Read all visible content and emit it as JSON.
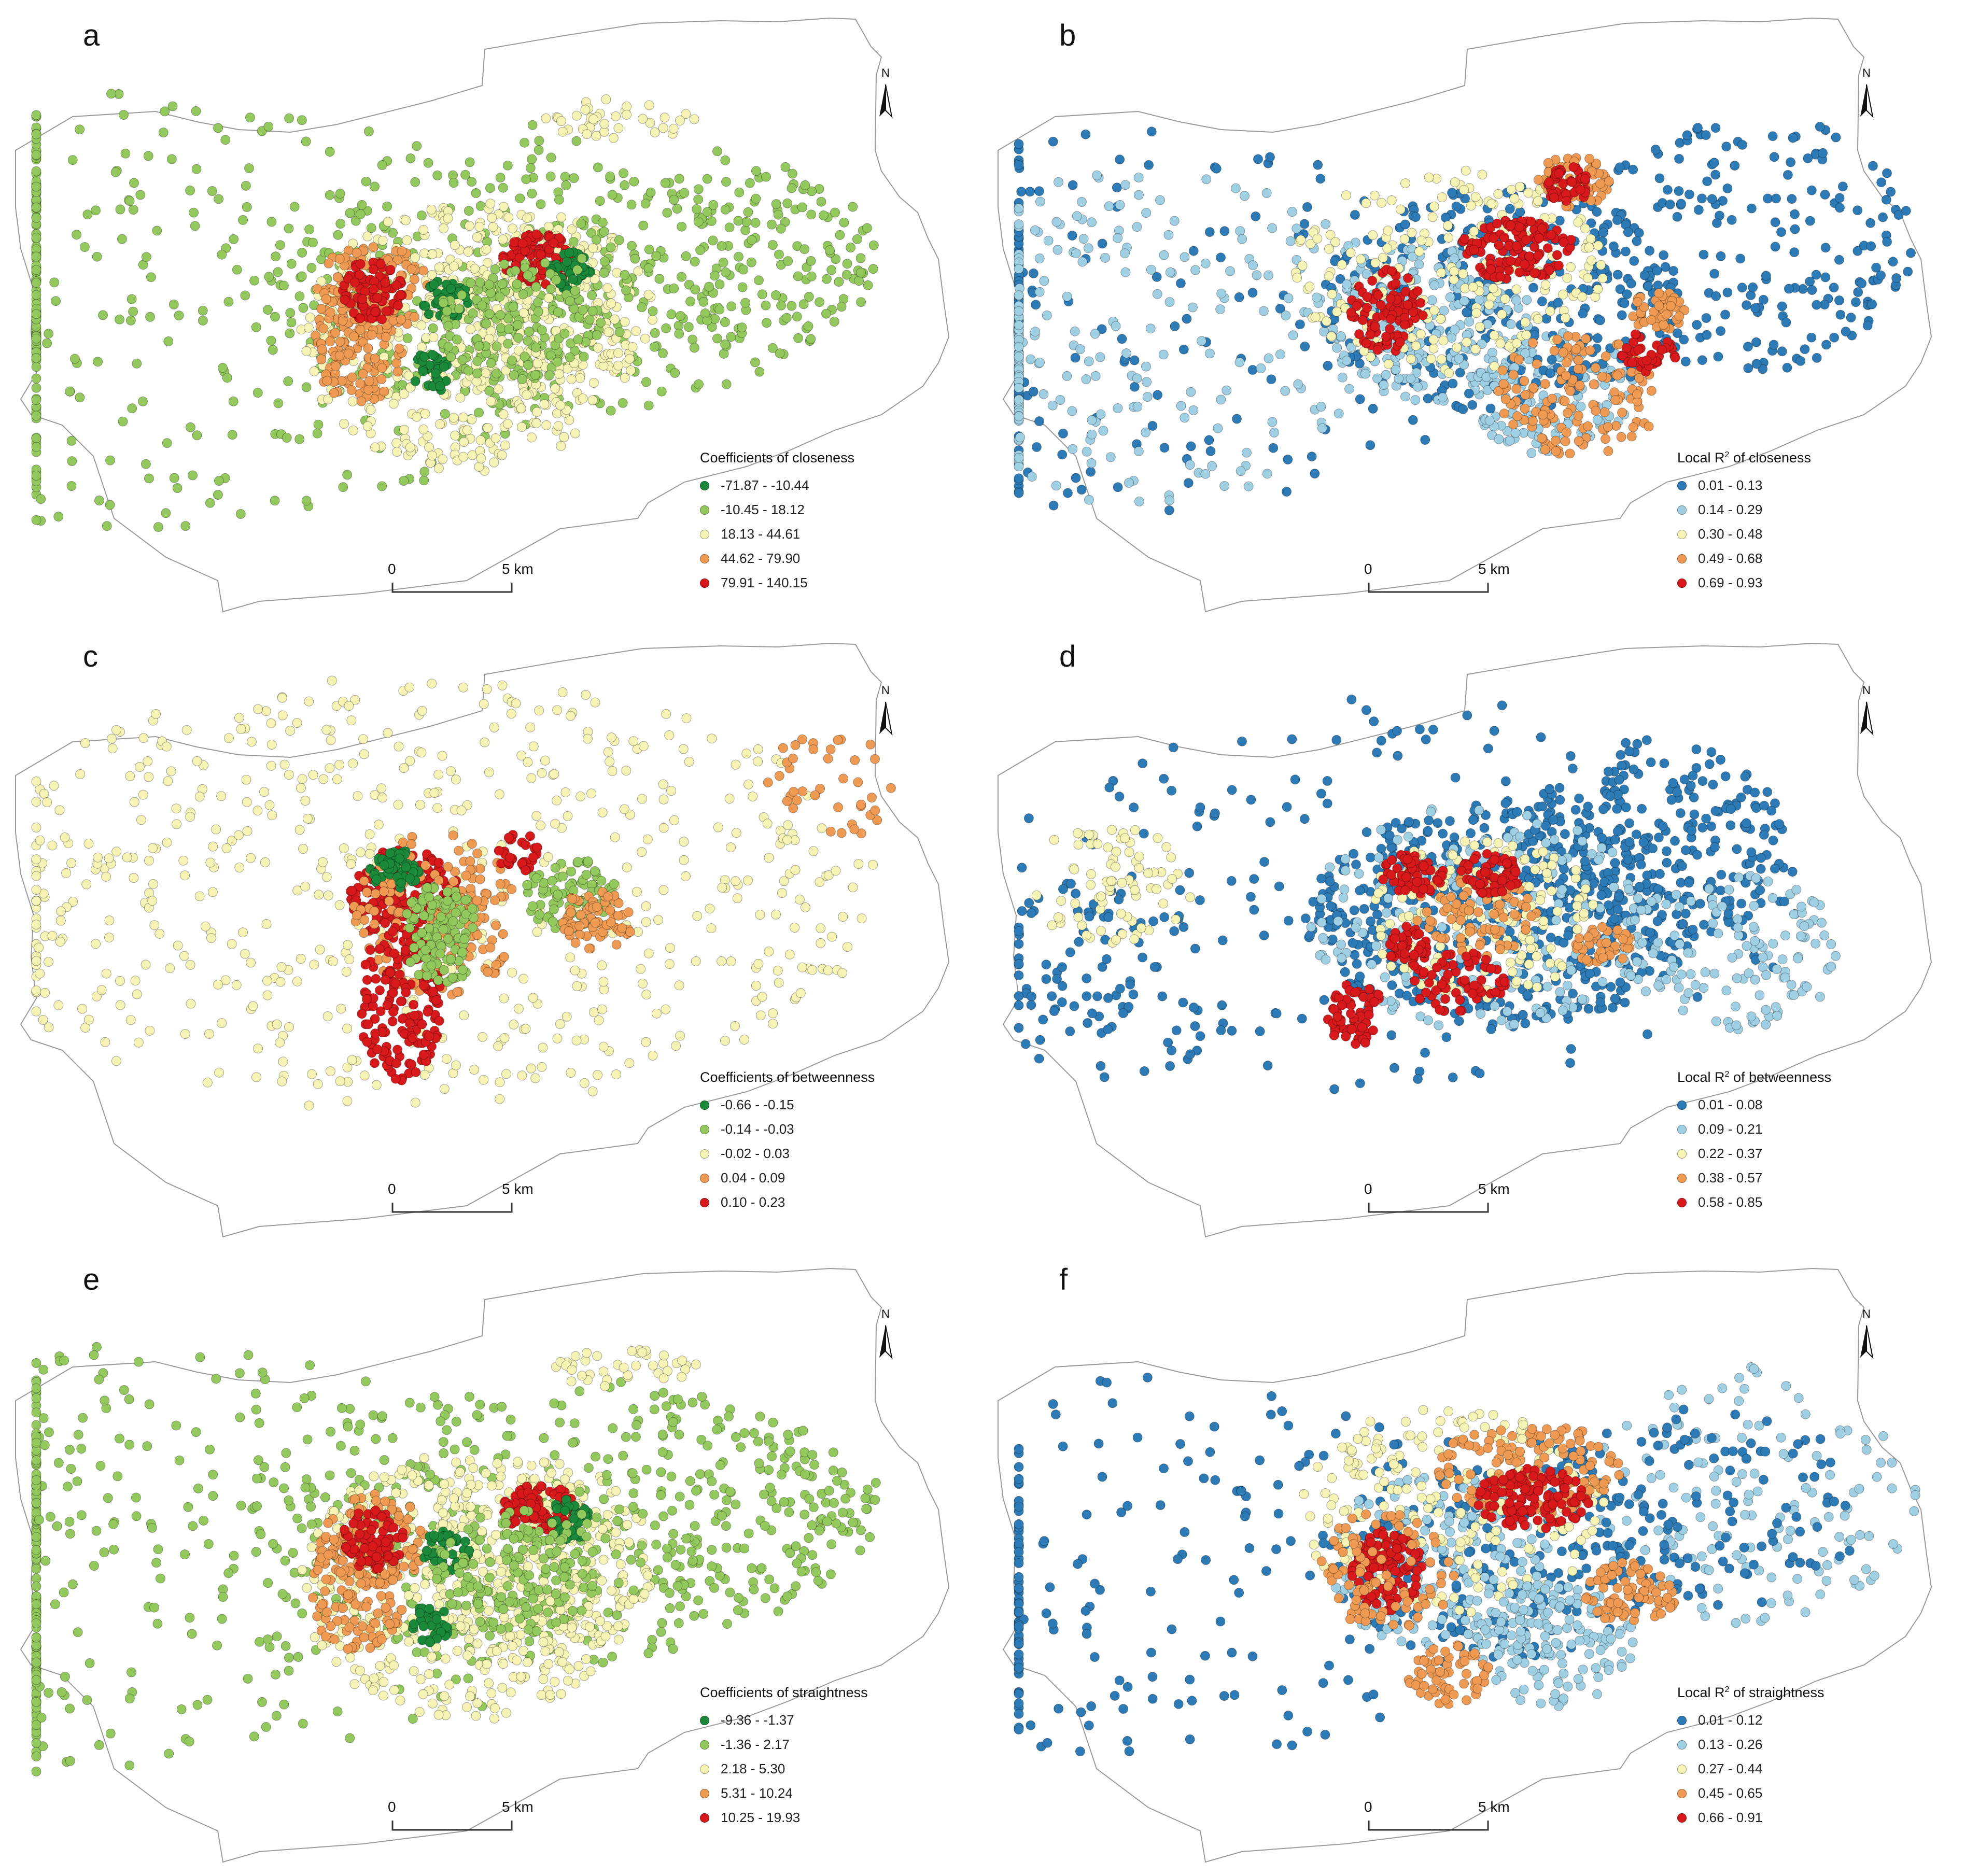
{
  "figure": {
    "north_label": "N",
    "scale_zero": "0",
    "scale_distance": "5 km",
    "panels": [
      {
        "letter": "a",
        "legend_title": "Coefficients of closeness",
        "classes": [
          {
            "label": "-71.87 - -10.44",
            "color": "#1a8a3a"
          },
          {
            "label": "-10.45 - 18.12",
            "color": "#93c95c"
          },
          {
            "label": "18.13 - 44.61",
            "color": "#f6f4b4"
          },
          {
            "label": "44.62 - 79.90",
            "color": "#ef9a52"
          },
          {
            "label": "79.91 - 140.15",
            "color": "#d7191c"
          }
        ]
      },
      {
        "letter": "b",
        "legend_title_pre": "Local R",
        "legend_title_sup": "2",
        "legend_title_post": " of closeness",
        "classes": [
          {
            "label": "0.01 - 0.13",
            "color": "#2c7bb6"
          },
          {
            "label": "0.14 - 0.29",
            "color": "#9fcfe3"
          },
          {
            "label": "0.30 - 0.48",
            "color": "#f6f4b4"
          },
          {
            "label": "0.49 - 0.68",
            "color": "#ef9a52"
          },
          {
            "label": "0.69 - 0.93",
            "color": "#d7191c"
          }
        ]
      },
      {
        "letter": "c",
        "legend_title": "Coefficients of betweenness",
        "classes": [
          {
            "label": "-0.66 - -0.15",
            "color": "#1a8a3a"
          },
          {
            "label": "-0.14 - -0.03",
            "color": "#93c95c"
          },
          {
            "label": "-0.02 - 0.03",
            "color": "#f6f4b4"
          },
          {
            "label": "0.04 - 0.09",
            "color": "#ef9a52"
          },
          {
            "label": "0.10 - 0.23",
            "color": "#d7191c"
          }
        ]
      },
      {
        "letter": "d",
        "legend_title_pre": "Local R",
        "legend_title_sup": "2",
        "legend_title_post": " of betweenness",
        "classes": [
          {
            "label": "0.01 - 0.08",
            "color": "#2c7bb6"
          },
          {
            "label": "0.09 - 0.21",
            "color": "#9fcfe3"
          },
          {
            "label": "0.22 - 0.37",
            "color": "#f6f4b4"
          },
          {
            "label": "0.38 - 0.57",
            "color": "#ef9a52"
          },
          {
            "label": "0.58 - 0.85",
            "color": "#d7191c"
          }
        ]
      },
      {
        "letter": "e",
        "legend_title": "Coefficients of straightness",
        "classes": [
          {
            "label": "-9.36 - -1.37",
            "color": "#1a8a3a"
          },
          {
            "label": "-1.36 - 2.17",
            "color": "#93c95c"
          },
          {
            "label": "2.18 - 5.30",
            "color": "#f6f4b4"
          },
          {
            "label": "5.31 - 10.24",
            "color": "#ef9a52"
          },
          {
            "label": "10.25 - 19.93",
            "color": "#d7191c"
          }
        ]
      },
      {
        "letter": "f",
        "legend_title_pre": "Local R",
        "legend_title_sup": "2",
        "legend_title_post": " of straightness",
        "classes": [
          {
            "label": "0.01 - 0.12",
            "color": "#2c7bb6"
          },
          {
            "label": "0.13 - 0.26",
            "color": "#9fcfe3"
          },
          {
            "label": "0.27 - 0.44",
            "color": "#f6f4b4"
          },
          {
            "label": "0.45 - 0.65",
            "color": "#ef9a52"
          },
          {
            "label": "0.66 - 0.91",
            "color": "#d7191c"
          }
        ]
      }
    ]
  }
}
